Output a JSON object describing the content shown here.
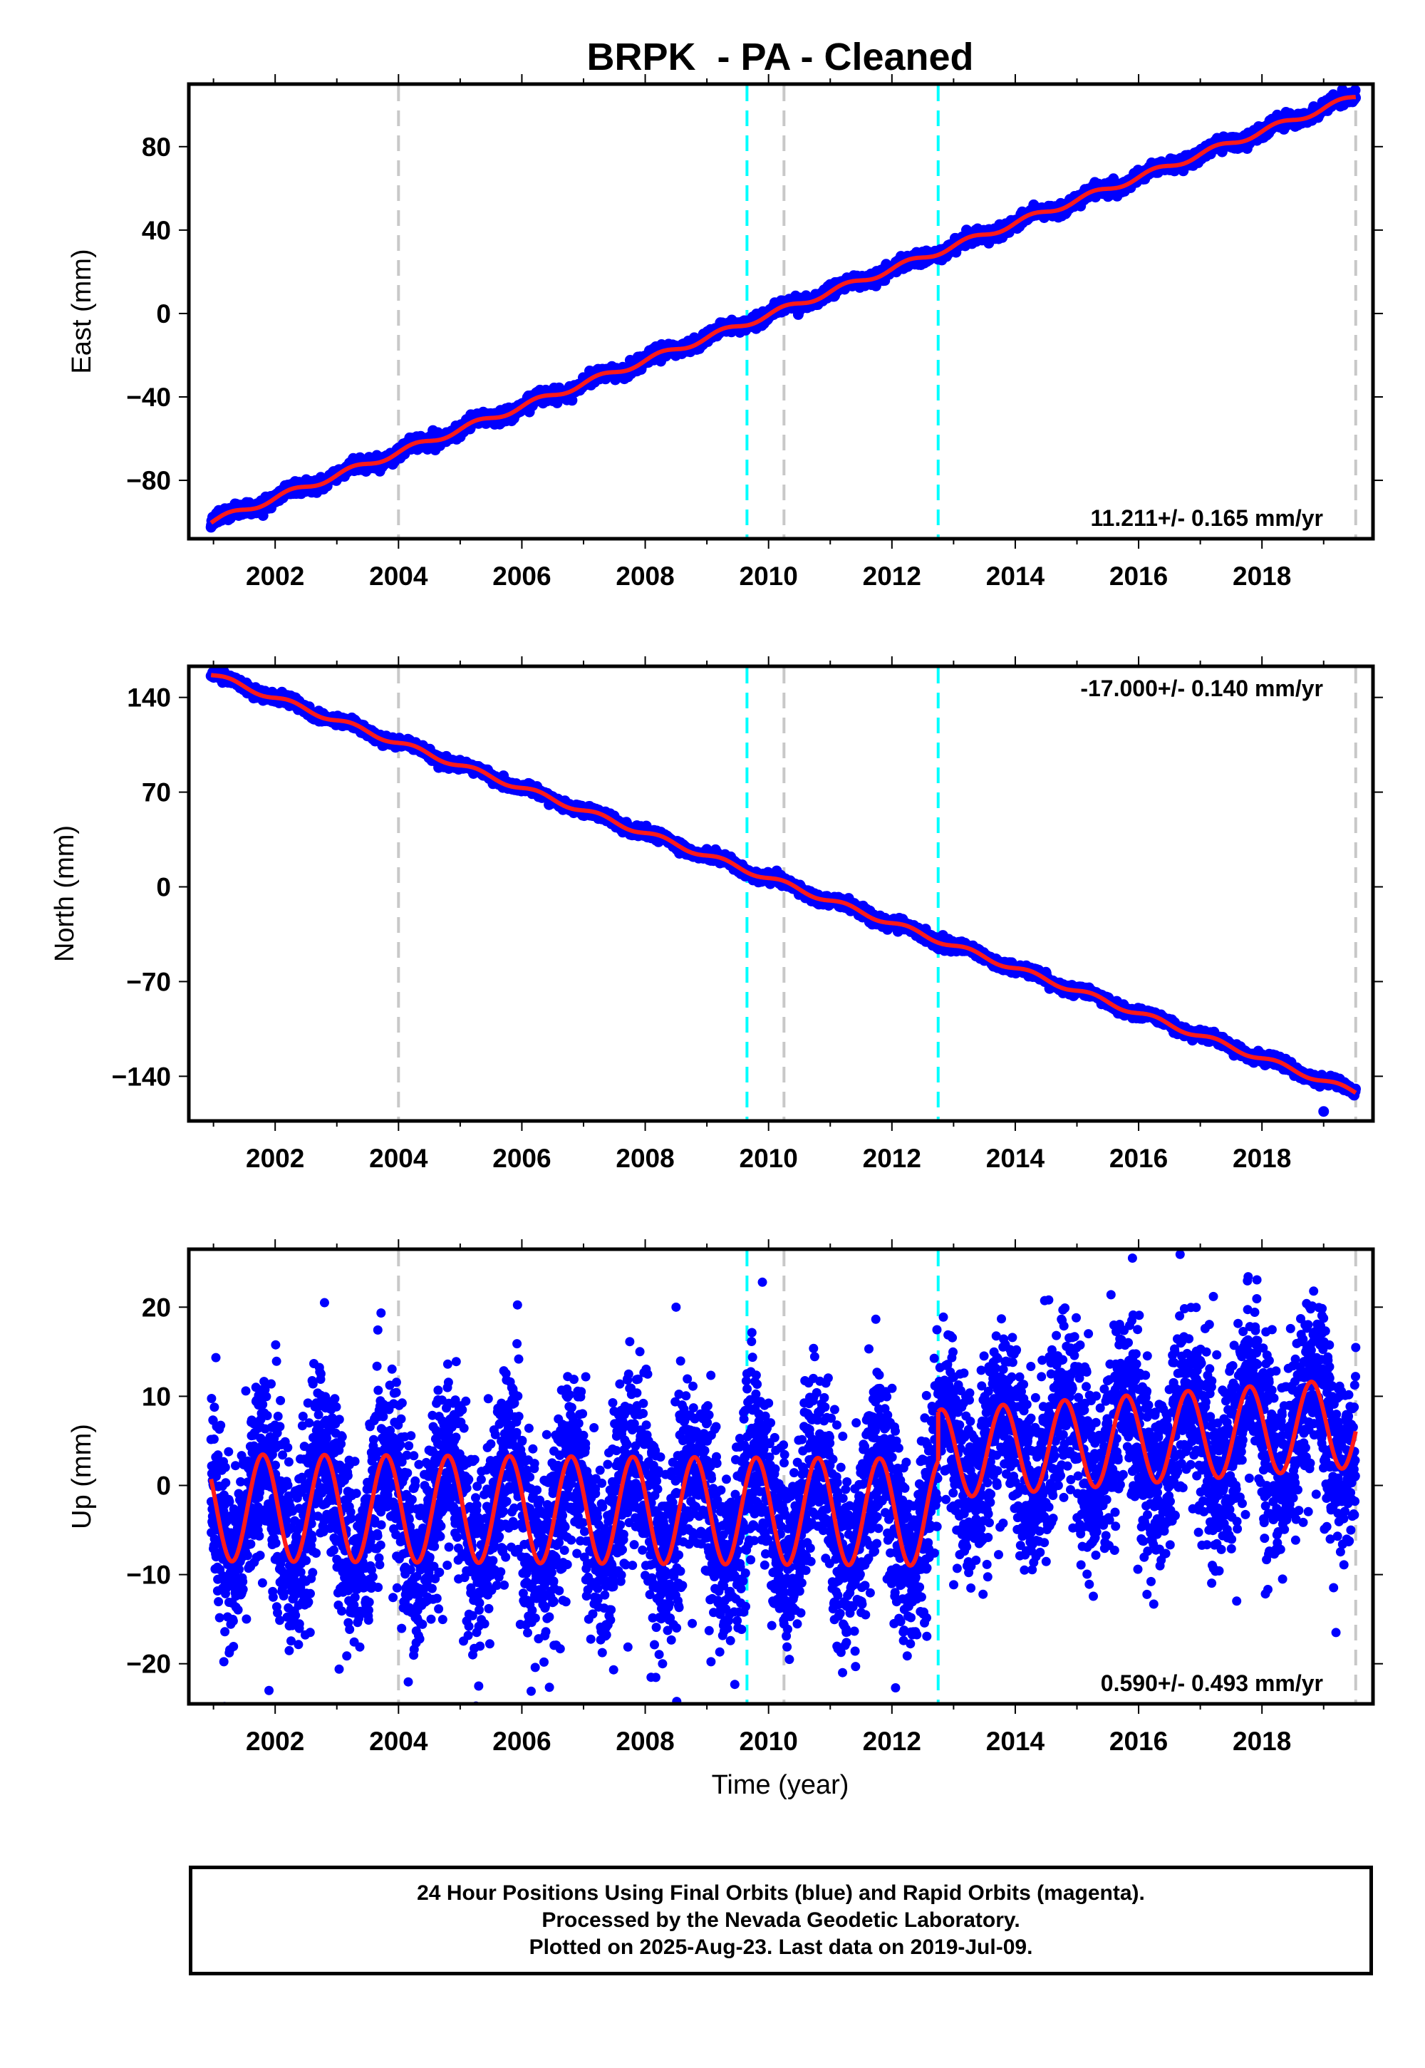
{
  "title": "BRPK  - PA - Cleaned",
  "xlabel": "Time (year)",
  "caption_lines": [
    "24 Hour Positions Using Final Orbits (blue) and Rapid Orbits (magenta).",
    "Processed by the Nevada Geodetic Laboratory.",
    "Plotted on 2025-Aug-23. Last data on 2019-Jul-09."
  ],
  "colors": {
    "final_orbits": "#0000ff",
    "model_fit": "#ff1a1a",
    "equipment_change": "#00ffff",
    "other_offset": "#c8c8c8",
    "frame": "#000000"
  },
  "chart_data": [
    {
      "type": "scatter",
      "component": "east",
      "ylabel": "East (mm)",
      "rate_label": "11.211+/- 0.165 mm/yr",
      "xlim": [
        2000.6,
        2019.8
      ],
      "ylim": [
        -108,
        110
      ],
      "xticks": [
        2002,
        2004,
        2006,
        2008,
        2010,
        2012,
        2014,
        2016,
        2018
      ],
      "yticks": [
        80,
        40,
        0,
        -40,
        -80
      ],
      "ytick_labels": [
        "80",
        "40",
        "0",
        "−40",
        "−80"
      ],
      "trend": {
        "start": [
          2000.96,
          -100
        ],
        "end": [
          2019.52,
          104
        ],
        "rate_mm_per_yr": 11.211
      },
      "seasonal_amplitude": 1.5,
      "scatter_sd": 1.5,
      "vlines_gray": [
        2004.0,
        2010.25,
        2019.52
      ],
      "vlines_cyan": [
        2009.65,
        2012.75
      ],
      "outliers": []
    },
    {
      "type": "scatter",
      "component": "north",
      "ylabel": "North (mm)",
      "rate_label": "-17.000+/- 0.140 mm/yr",
      "xlim": [
        2000.6,
        2019.8
      ],
      "ylim": [
        -173,
        163
      ],
      "xticks": [
        2002,
        2004,
        2006,
        2008,
        2010,
        2012,
        2014,
        2016,
        2018
      ],
      "yticks": [
        140,
        70,
        0,
        -70,
        -140
      ],
      "ytick_labels": [
        "140",
        "70",
        "0",
        "−70",
        "−140"
      ],
      "trend": {
        "start": [
          2000.96,
          157
        ],
        "end": [
          2019.52,
          -152
        ],
        "rate_mm_per_yr": -17.0
      },
      "seasonal_amplitude": 2.0,
      "scatter_sd": 1.8,
      "vlines_gray": [
        2004.0,
        2010.25,
        2019.52
      ],
      "vlines_cyan": [
        2009.65,
        2012.75
      ],
      "outliers": [
        [
          2019.0,
          -166
        ]
      ]
    },
    {
      "type": "scatter",
      "component": "up",
      "ylabel": "Up (mm)",
      "xlabel": "Time (year)",
      "rate_label": "0.590+/- 0.493 mm/yr",
      "xlim": [
        2000.6,
        2019.8
      ],
      "ylim": [
        -24.5,
        26.5
      ],
      "xticks": [
        2002,
        2004,
        2006,
        2008,
        2010,
        2012,
        2014,
        2016,
        2018
      ],
      "yticks": [
        20,
        10,
        0,
        -10,
        -20
      ],
      "ytick_labels": [
        "20",
        "10",
        "0",
        "−10",
        "−20"
      ],
      "model_segments": [
        {
          "from": 2000.96,
          "to": 2012.75,
          "offset_start": -2.5,
          "offset_end": -3.0,
          "amplitude": 6.0
        },
        {
          "from": 2012.75,
          "to": 2019.52,
          "offset_start": 3.5,
          "offset_end": 7.0,
          "amplitude": 5.0
        }
      ],
      "seasonal_phase_peak": 0.8,
      "scatter_sd": 4.0,
      "vlines_gray": [
        2004.0,
        2010.25,
        2019.52
      ],
      "vlines_cyan": [
        2009.65,
        2012.75
      ],
      "outliers": [
        [
          2002.8,
          20.5
        ],
        [
          2008.5,
          20.0
        ],
        [
          2009.9,
          22.8
        ],
        [
          2001.9,
          -23.0
        ],
        [
          2005.3,
          -22.5
        ],
        [
          2011.2,
          -21.0
        ],
        [
          2015.9,
          25.5
        ],
        [
          2019.2,
          -16.5
        ]
      ]
    }
  ]
}
